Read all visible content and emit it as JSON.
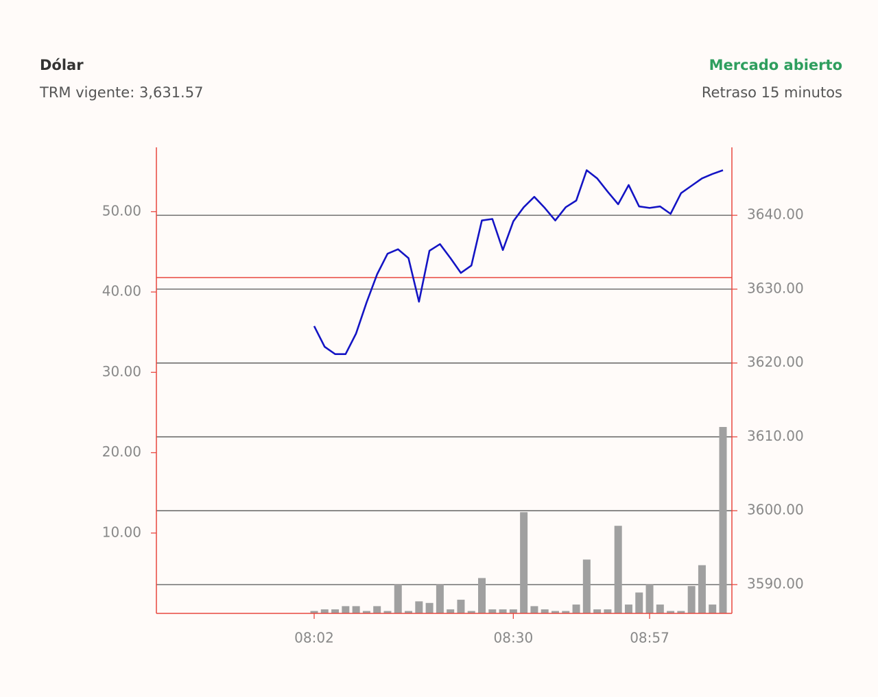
{
  "header": {
    "title": "Dólar",
    "subtitle": "TRM vigente: 3,631.57",
    "status": "Mercado abierto",
    "delay": "Retraso 15 minutos"
  },
  "chart_data": {
    "type": "combo",
    "categories": [
      "08:02",
      null,
      null,
      null,
      null,
      null,
      null,
      null,
      null,
      null,
      null,
      null,
      null,
      null,
      null,
      null,
      null,
      null,
      null,
      "08:30",
      null,
      null,
      null,
      null,
      null,
      null,
      null,
      null,
      null,
      null,
      null,
      null,
      "08:57",
      null,
      null,
      null,
      null,
      null,
      null,
      null
    ],
    "series": [
      {
        "type": "bar",
        "color": "#a0a0a0",
        "values": [
          0.3,
          0.5,
          0.5,
          0.9,
          0.9,
          0.3,
          0.9,
          0.3,
          3.6,
          0.3,
          1.5,
          1.3,
          3.6,
          0.5,
          1.7,
          0.3,
          4.4,
          0.5,
          0.5,
          0.5,
          12.6,
          0.9,
          0.5,
          0.3,
          0.3,
          1.1,
          6.7,
          0.5,
          0.5,
          10.9,
          1.1,
          2.6,
          3.6,
          1.1,
          0.3,
          0.3,
          3.4,
          6.0,
          1.1,
          23.2
        ]
      },
      {
        "type": "line",
        "axis": "y2",
        "color": "#1414c4",
        "values": [
          3625.0,
          3622.2,
          3621.2,
          3621.2,
          3624.0,
          3628.2,
          3632.0,
          3634.8,
          3635.4,
          3634.2,
          3628.3,
          3635.2,
          3636.1,
          3634.2,
          3632.2,
          3633.2,
          3639.3,
          3639.5,
          3635.3,
          3639.2,
          3641.1,
          3642.5,
          3641.0,
          3639.3,
          3641.1,
          3642.0,
          3646.1,
          3645.0,
          3643.2,
          3641.5,
          3644.1,
          3641.2,
          3641.0,
          3641.2,
          3640.2,
          3643.0,
          3644.0,
          3645.0,
          3645.6,
          3646.1
        ]
      }
    ],
    "ylim": [
      0,
      58
    ],
    "yticks": [
      {
        "value": 10,
        "label": "10.00"
      },
      {
        "value": 20,
        "label": "20.00"
      },
      {
        "value": 30,
        "label": "30.00"
      },
      {
        "value": 40,
        "label": "40.00"
      },
      {
        "value": 50,
        "label": "50.00"
      }
    ],
    "y2lim": [
      3586.1,
      3649.2
    ],
    "y2ticks": [
      {
        "value": 3590,
        "label": "3590.00"
      },
      {
        "value": 3600,
        "label": "3600.00"
      },
      {
        "value": 3610,
        "label": "3610.00"
      },
      {
        "value": 3620,
        "label": "3620.00"
      },
      {
        "value": 3630,
        "label": "3630.00"
      },
      {
        "value": 3640,
        "label": "3640.00"
      }
    ],
    "grid": true,
    "axis_color": "#e8473f",
    "reference_line": {
      "value": 3631.57,
      "color": "#e8473f"
    }
  }
}
